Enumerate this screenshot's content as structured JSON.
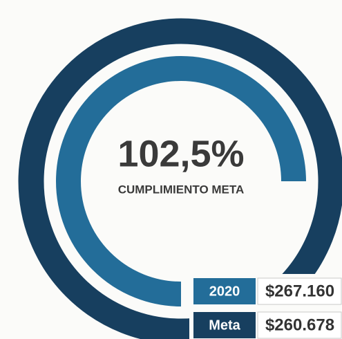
{
  "kpi": {
    "value": "102,5%",
    "label": "CUMPLIMIENTO META"
  },
  "rows": [
    {
      "label": "2020",
      "amount": "$267.160"
    },
    {
      "label": "Meta",
      "amount": "$260.678"
    }
  ]
}
